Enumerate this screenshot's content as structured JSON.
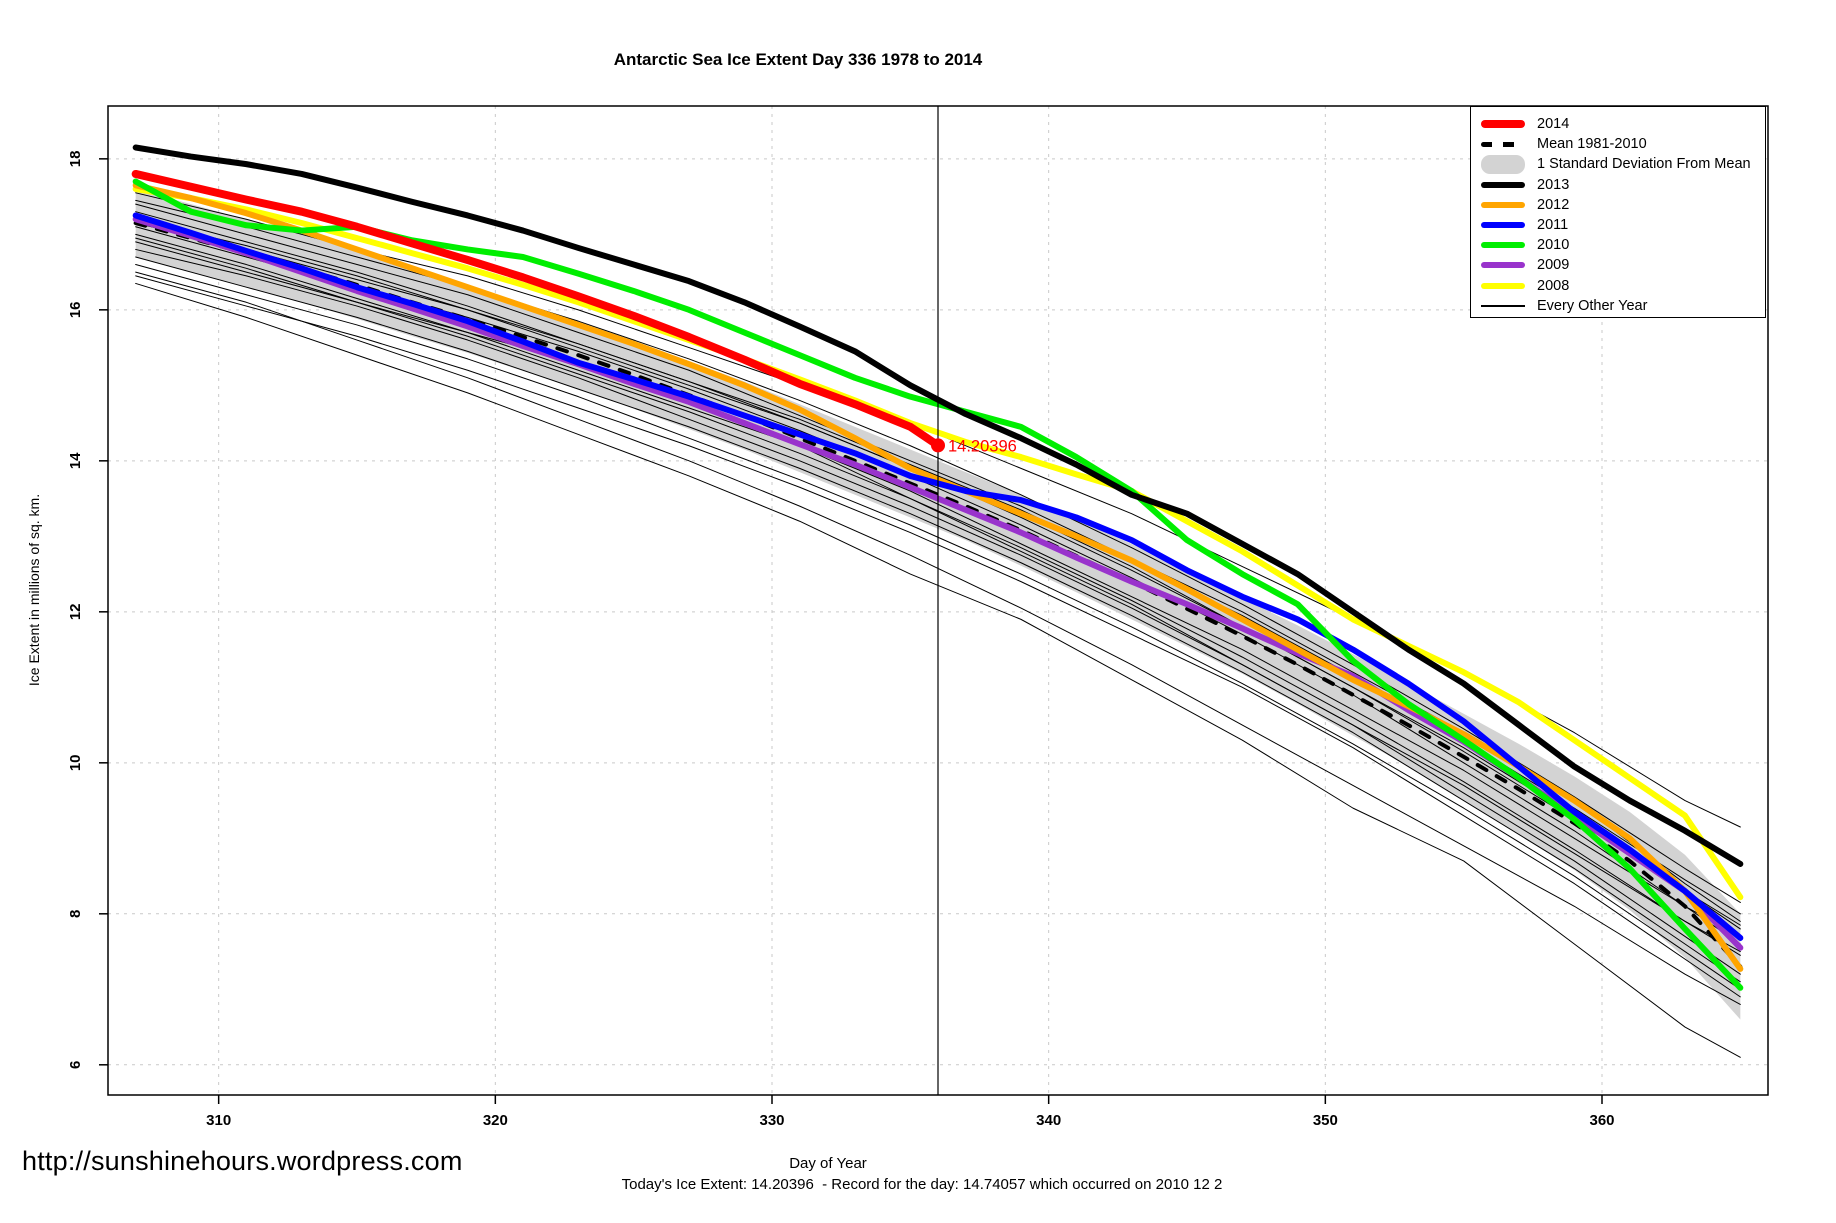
{
  "title": "Antarctic Sea Ice Extent Day 336 1978 to 2014",
  "axes": {
    "x_label": "Day of Year",
    "y_label": "Ice Extent in millions of sq. km.",
    "x_ticks": [
      310,
      320,
      330,
      340,
      350,
      360
    ],
    "y_ticks": [
      6,
      8,
      10,
      12,
      14,
      16,
      18
    ]
  },
  "legend": {
    "items": [
      {
        "label": "2014",
        "swatch": "line",
        "color": "#FF0000",
        "weight": 8
      },
      {
        "label": "Mean 1981-2010",
        "swatch": "dashed",
        "color": "#000000",
        "weight": 5
      },
      {
        "label": "1 Standard Deviation From Mean",
        "swatch": "band",
        "color": "#D3D3D3"
      },
      {
        "label": "2013",
        "swatch": "line",
        "color": "#000000",
        "weight": 6
      },
      {
        "label": "2012",
        "swatch": "line",
        "color": "#FFA500",
        "weight": 6
      },
      {
        "label": "2011",
        "swatch": "line",
        "color": "#0000FF",
        "weight": 6
      },
      {
        "label": "2010",
        "swatch": "line",
        "color": "#00EE00",
        "weight": 6
      },
      {
        "label": "2009",
        "swatch": "line",
        "color": "#9933CC",
        "weight": 6
      },
      {
        "label": "2008",
        "swatch": "line",
        "color": "#FFFF00",
        "weight": 6
      },
      {
        "label": "Every Other Year",
        "swatch": "thin-line",
        "color": "#000000",
        "weight": 1
      }
    ]
  },
  "annotation": {
    "text": "14.20396",
    "day": 336,
    "value": 14.20396,
    "color": "#FF0000"
  },
  "footer": {
    "url": "http://sunshinehours.wordpress.com",
    "summary": "Today's Ice Extent: 14.20396  - Record for the day: 14.74057 which occurred on 2010 12 2"
  },
  "chart_data": {
    "type": "line",
    "title": "Antarctic Sea Ice Extent Day 336 1978 to 2014",
    "xlabel": "Day of Year",
    "ylabel": "Ice Extent in millions of sq. km.",
    "xlim": [
      306,
      366
    ],
    "ylim": [
      5.6,
      18.7
    ],
    "x_ticks": [
      310,
      320,
      330,
      340,
      350,
      360
    ],
    "y_ticks": [
      6,
      8,
      10,
      12,
      14,
      16,
      18
    ],
    "grid": "dashed-both-axes",
    "legend_position": "top-right",
    "vline_x": 336,
    "annotation": {
      "text": "14.20396",
      "x": 336,
      "y": 14.20396,
      "color": "#FF0000"
    },
    "x_main": [
      307,
      309,
      311,
      313,
      315,
      317,
      319,
      321,
      323,
      325,
      327,
      329,
      331,
      333,
      335,
      337,
      339,
      341,
      343,
      345,
      347,
      349,
      351,
      353,
      355,
      357,
      359,
      361,
      363,
      365
    ],
    "band": {
      "name": "1 Standard Deviation From Mean",
      "color": "#D3D3D3",
      "upper": [
        17.6,
        17.4,
        17.2,
        17.0,
        16.78,
        16.55,
        16.33,
        16.09,
        15.85,
        15.59,
        15.32,
        15.05,
        14.75,
        14.45,
        14.15,
        13.85,
        13.55,
        13.22,
        12.9,
        12.54,
        12.18,
        11.82,
        11.44,
        11.05,
        10.65,
        10.25,
        9.82,
        9.35,
        8.78,
        8.0
      ],
      "lower": [
        16.7,
        16.5,
        16.3,
        16.1,
        15.88,
        15.65,
        15.43,
        15.19,
        14.95,
        14.69,
        14.42,
        14.15,
        13.85,
        13.55,
        13.25,
        12.95,
        12.61,
        12.26,
        11.9,
        11.54,
        11.18,
        10.78,
        10.36,
        9.95,
        9.51,
        9.05,
        8.58,
        8.05,
        7.42,
        6.6
      ]
    },
    "series": [
      {
        "name": "Mean 1981-2010",
        "color": "#000000",
        "style": "dashed",
        "width": 4,
        "values": [
          17.15,
          16.95,
          16.75,
          16.55,
          16.33,
          16.1,
          15.88,
          15.64,
          15.4,
          15.14,
          14.87,
          14.6,
          14.3,
          14.0,
          13.7,
          13.4,
          13.08,
          12.74,
          12.4,
          12.04,
          11.68,
          11.3,
          10.9,
          10.5,
          10.08,
          9.65,
          9.2,
          8.7,
          8.1,
          7.3
        ]
      },
      {
        "name": "2008",
        "color": "#FFFF00",
        "style": "solid",
        "width": 6,
        "values": [
          17.6,
          17.48,
          17.33,
          17.15,
          16.95,
          16.75,
          16.55,
          16.33,
          16.1,
          15.85,
          15.6,
          15.35,
          15.08,
          14.8,
          14.5,
          14.25,
          14.05,
          13.82,
          13.6,
          13.2,
          12.8,
          12.35,
          11.9,
          11.55,
          11.2,
          10.8,
          10.3,
          9.8,
          9.3,
          8.22
        ]
      },
      {
        "name": "2009",
        "color": "#9933CC",
        "style": "solid",
        "width": 6,
        "values": [
          17.2,
          16.98,
          16.75,
          16.5,
          16.25,
          16.02,
          15.78,
          15.52,
          15.28,
          15.02,
          14.78,
          14.5,
          14.22,
          13.95,
          13.65,
          13.35,
          13.05,
          12.72,
          12.4,
          12.1,
          11.78,
          11.45,
          11.15,
          10.7,
          10.28,
          9.8,
          9.3,
          8.8,
          8.3,
          7.55
        ]
      },
      {
        "name": "2012",
        "color": "#FFA500",
        "style": "solid",
        "width": 6,
        "values": [
          17.65,
          17.48,
          17.28,
          17.05,
          16.8,
          16.55,
          16.3,
          16.05,
          15.8,
          15.55,
          15.28,
          15.0,
          14.68,
          14.3,
          13.9,
          13.6,
          13.3,
          13.0,
          12.68,
          12.3,
          11.9,
          11.5,
          11.1,
          10.75,
          10.38,
          9.95,
          9.5,
          9.0,
          8.3,
          7.27
        ]
      },
      {
        "name": "2011",
        "color": "#0000FF",
        "style": "solid",
        "width": 6,
        "values": [
          17.25,
          17.02,
          16.78,
          16.55,
          16.3,
          16.08,
          15.85,
          15.58,
          15.3,
          15.08,
          14.85,
          14.6,
          14.35,
          14.1,
          13.8,
          13.6,
          13.48,
          13.25,
          12.95,
          12.55,
          12.2,
          11.9,
          11.5,
          11.05,
          10.55,
          9.95,
          9.35,
          8.85,
          8.3,
          7.68
        ]
      },
      {
        "name": "2010",
        "color": "#00EE00",
        "style": "solid",
        "width": 6,
        "values": [
          17.7,
          17.3,
          17.12,
          17.05,
          17.1,
          16.92,
          16.8,
          16.7,
          16.48,
          16.25,
          16.0,
          15.7,
          15.4,
          15.1,
          14.85,
          14.65,
          14.45,
          14.05,
          13.6,
          12.95,
          12.5,
          12.1,
          11.35,
          10.78,
          10.3,
          9.8,
          9.25,
          8.6,
          7.8,
          7.02
        ]
      },
      {
        "name": "2013",
        "color": "#000000",
        "style": "solid",
        "width": 6,
        "values": [
          18.15,
          18.03,
          17.93,
          17.8,
          17.62,
          17.43,
          17.25,
          17.05,
          16.82,
          16.6,
          16.38,
          16.1,
          15.78,
          15.45,
          15.0,
          14.62,
          14.3,
          13.95,
          13.55,
          13.3,
          12.9,
          12.5,
          12.0,
          11.5,
          11.05,
          10.5,
          9.95,
          9.5,
          9.1,
          8.66
        ]
      },
      {
        "name": "2014",
        "color": "#FF0000",
        "style": "solid",
        "width": 8,
        "x": [
          307,
          309,
          311,
          313,
          315,
          317,
          319,
          321,
          323,
          325,
          327,
          329,
          331,
          333,
          335,
          336
        ],
        "values": [
          17.8,
          17.63,
          17.46,
          17.3,
          17.1,
          16.88,
          16.66,
          16.43,
          16.18,
          15.92,
          15.64,
          15.34,
          15.02,
          14.75,
          14.45,
          14.20396
        ]
      }
    ],
    "other_years": {
      "name": "Every Other Year",
      "color": "#000000",
      "width": 1,
      "x": [
        307,
        311,
        315,
        319,
        323,
        327,
        331,
        335,
        339,
        343,
        347,
        351,
        355,
        359,
        363,
        365
      ],
      "lines": [
        [
          17.55,
          17.2,
          16.8,
          16.45,
          16.0,
          15.5,
          15.0,
          14.5,
          13.9,
          13.3,
          12.6,
          11.9,
          11.2,
          10.4,
          9.5,
          9.15
        ],
        [
          16.35,
          15.9,
          15.4,
          14.9,
          14.35,
          13.8,
          13.2,
          12.5,
          11.9,
          11.1,
          10.3,
          9.4,
          8.7,
          7.6,
          6.5,
          6.1
        ],
        [
          17.4,
          17.0,
          16.6,
          16.2,
          15.7,
          15.2,
          14.6,
          14.0,
          13.4,
          12.7,
          12.0,
          11.2,
          10.4,
          9.5,
          8.4,
          7.9
        ],
        [
          17.2,
          16.85,
          16.45,
          16.0,
          15.5,
          15.0,
          14.5,
          13.9,
          13.3,
          12.6,
          11.8,
          11.0,
          10.2,
          9.3,
          8.3,
          7.8
        ],
        [
          17.0,
          16.6,
          16.15,
          15.7,
          15.2,
          14.7,
          14.2,
          13.6,
          12.9,
          12.2,
          11.5,
          10.7,
          9.9,
          9.0,
          8.1,
          7.6
        ],
        [
          16.9,
          16.5,
          16.1,
          15.7,
          15.3,
          14.8,
          14.2,
          13.5,
          12.8,
          12.1,
          11.3,
          10.5,
          9.7,
          8.8,
          7.9,
          7.5
        ],
        [
          16.8,
          16.45,
          16.05,
          15.6,
          15.1,
          14.55,
          14.0,
          13.4,
          12.75,
          12.05,
          11.3,
          10.5,
          9.6,
          8.7,
          7.7,
          7.2
        ],
        [
          16.7,
          16.3,
          15.9,
          15.45,
          14.95,
          14.45,
          13.9,
          13.3,
          12.65,
          11.95,
          11.2,
          10.4,
          9.5,
          8.6,
          7.6,
          7.1
        ],
        [
          17.1,
          16.7,
          16.3,
          15.9,
          15.45,
          14.95,
          14.4,
          13.8,
          13.15,
          12.45,
          11.7,
          10.9,
          10.0,
          9.1,
          8.1,
          7.7
        ],
        [
          16.6,
          16.2,
          15.8,
          15.35,
          14.85,
          14.3,
          13.75,
          13.15,
          12.5,
          11.8,
          11.05,
          10.25,
          9.4,
          8.5,
          7.5,
          7.0
        ],
        [
          16.95,
          16.55,
          16.1,
          15.65,
          15.15,
          14.65,
          14.1,
          13.5,
          12.85,
          12.15,
          11.4,
          10.6,
          9.75,
          8.85,
          7.9,
          7.45
        ],
        [
          17.3,
          16.9,
          16.5,
          16.05,
          15.55,
          15.05,
          14.5,
          13.9,
          13.25,
          12.55,
          11.8,
          11.0,
          10.15,
          9.25,
          8.3,
          7.85
        ],
        [
          16.5,
          16.1,
          15.6,
          15.1,
          14.55,
          14.0,
          13.4,
          12.75,
          12.05,
          11.3,
          10.5,
          9.7,
          8.9,
          8.1,
          7.2,
          6.8
        ],
        [
          17.45,
          17.1,
          16.7,
          16.3,
          15.85,
          15.35,
          14.8,
          14.2,
          13.55,
          12.85,
          12.1,
          11.3,
          10.45,
          9.55,
          8.6,
          8.15
        ],
        [
          16.45,
          16.05,
          15.65,
          15.2,
          14.7,
          14.2,
          13.65,
          13.05,
          12.4,
          11.7,
          11.0,
          10.2,
          9.3,
          8.4,
          7.4,
          6.9
        ],
        [
          17.15,
          16.8,
          16.4,
          16.0,
          15.55,
          15.05,
          14.55,
          13.95,
          13.35,
          12.65,
          11.95,
          11.15,
          10.3,
          9.4,
          8.45,
          8.0
        ]
      ]
    }
  }
}
